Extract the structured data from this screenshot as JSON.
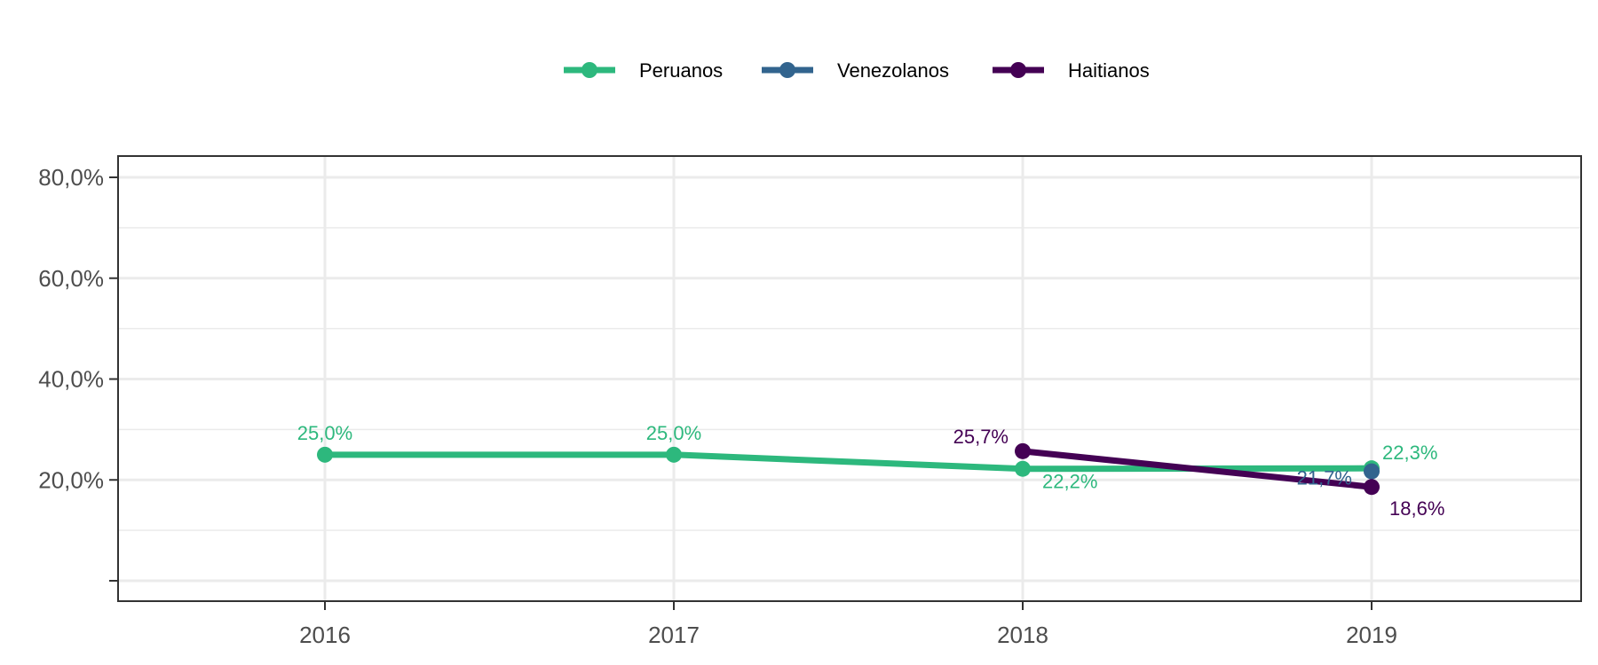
{
  "chart_data": {
    "type": "line",
    "title": "",
    "xlabel": "",
    "ylabel": "",
    "categories": [
      "2016",
      "2017",
      "2018",
      "2019"
    ],
    "ylim": [
      0,
      80
    ],
    "y_ticks": [
      20,
      40,
      60,
      80
    ],
    "y_tick_labels": [
      "20,0%",
      "40,0%",
      "60,0%",
      "80,0%"
    ],
    "grid": true,
    "legend_position": "top",
    "series": [
      {
        "name": "Peruanos",
        "color": "#2db87d",
        "points": [
          {
            "x": "2016",
            "y": 25.0,
            "label": "25,0%"
          },
          {
            "x": "2017",
            "y": 25.0,
            "label": "25,0%"
          },
          {
            "x": "2018",
            "y": 22.2,
            "label": "22,2%"
          },
          {
            "x": "2019",
            "y": 22.3,
            "label": "22,3%"
          }
        ]
      },
      {
        "name": "Venezolanos",
        "color": "#32648e",
        "points": [
          {
            "x": "2019",
            "y": 21.7,
            "label": "21,7%"
          }
        ]
      },
      {
        "name": "Haitianos",
        "color": "#440154",
        "points": [
          {
            "x": "2018",
            "y": 25.7,
            "label": "25,7%"
          },
          {
            "x": "2019",
            "y": 18.6,
            "label": "18,6%"
          }
        ]
      }
    ]
  }
}
